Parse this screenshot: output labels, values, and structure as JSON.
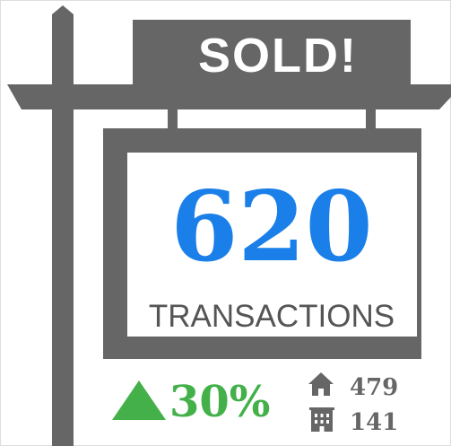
{
  "sign": {
    "header": "SOLD!",
    "value": "620",
    "label": "TRANSACTIONS"
  },
  "change": {
    "text": "30%"
  },
  "breakdown": [
    {
      "icon": "house",
      "value": "479"
    },
    {
      "icon": "building",
      "value": "141"
    }
  ]
}
